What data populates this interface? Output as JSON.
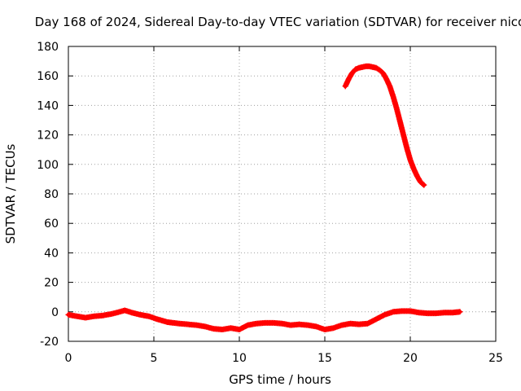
{
  "chart_data": {
    "type": "scatter",
    "title": "Day 168 of 2024, Sidereal Day-to-day VTEC variation (SDTVAR) for receiver nico",
    "xlabel": "GPS time / hours",
    "ylabel": "SDTVAR / TECUs",
    "xlim": [
      0,
      25
    ],
    "ylim": [
      -20,
      180
    ],
    "xticks": [
      0,
      5,
      10,
      15,
      20,
      25
    ],
    "yticks": [
      -20,
      0,
      20,
      40,
      60,
      80,
      100,
      120,
      140,
      160,
      180
    ],
    "grid": true,
    "series": [
      {
        "name": "SDTVAR",
        "color": "#ff0000",
        "marker": "plus",
        "segments": [
          [
            [
              0.0,
              -2
            ],
            [
              0.5,
              -3
            ],
            [
              1.0,
              -4
            ],
            [
              1.5,
              -3
            ],
            [
              2.0,
              -2.5
            ],
            [
              2.5,
              -1.5
            ],
            [
              3.0,
              0
            ],
            [
              3.3,
              1
            ],
            [
              3.7,
              -0.5
            ],
            [
              4.2,
              -2
            ],
            [
              4.7,
              -3
            ],
            [
              5.2,
              -5
            ],
            [
              5.8,
              -7
            ],
            [
              6.5,
              -8
            ],
            [
              7.0,
              -8.5
            ],
            [
              7.5,
              -9
            ],
            [
              8.0,
              -10
            ],
            [
              8.5,
              -11.5
            ],
            [
              9.0,
              -12
            ],
            [
              9.5,
              -11
            ],
            [
              10.0,
              -12
            ],
            [
              10.5,
              -9
            ],
            [
              11.0,
              -8
            ],
            [
              11.5,
              -7.5
            ],
            [
              12.0,
              -7.5
            ],
            [
              12.5,
              -8
            ],
            [
              13.0,
              -9
            ],
            [
              13.5,
              -8.5
            ],
            [
              14.0,
              -9
            ],
            [
              14.5,
              -10
            ],
            [
              15.0,
              -12
            ],
            [
              15.5,
              -11
            ],
            [
              16.0,
              -9
            ],
            [
              16.5,
              -8
            ],
            [
              17.0,
              -8.5
            ],
            [
              17.5,
              -8
            ],
            [
              18.0,
              -5
            ],
            [
              18.5,
              -2
            ],
            [
              19.0,
              0
            ],
            [
              19.5,
              0.5
            ],
            [
              20.0,
              0.5
            ],
            [
              20.5,
              -0.5
            ],
            [
              21.0,
              -1
            ],
            [
              21.5,
              -1
            ],
            [
              22.0,
              -0.5
            ],
            [
              22.5,
              -0.5
            ],
            [
              22.9,
              0
            ]
          ],
          [
            [
              16.2,
              153
            ],
            [
              16.4,
              158
            ],
            [
              16.6,
              162
            ],
            [
              16.8,
              164.5
            ],
            [
              17.0,
              165.5
            ],
            [
              17.2,
              166
            ],
            [
              17.4,
              166.5
            ],
            [
              17.6,
              166.5
            ],
            [
              17.8,
              166
            ],
            [
              18.0,
              165.5
            ],
            [
              18.2,
              164
            ],
            [
              18.4,
              162
            ],
            [
              18.6,
              158
            ],
            [
              18.8,
              153
            ],
            [
              19.0,
              146
            ],
            [
              19.2,
              138
            ],
            [
              19.4,
              129
            ],
            [
              19.6,
              120
            ],
            [
              19.8,
              111
            ],
            [
              20.0,
              103
            ],
            [
              20.2,
              97
            ],
            [
              20.4,
              92
            ],
            [
              20.6,
              88
            ],
            [
              20.8,
              86
            ]
          ]
        ]
      }
    ]
  }
}
